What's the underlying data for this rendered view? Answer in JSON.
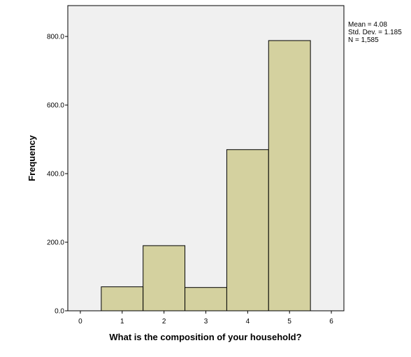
{
  "chart_data": {
    "type": "bar",
    "subtype": "histogram",
    "title": "",
    "xlabel": "What is the composition of your household?",
    "ylabel": "Frequency",
    "x_ticks": [
      "0",
      "1",
      "2",
      "3",
      "4",
      "5",
      "6"
    ],
    "y_ticks": [
      "0.0",
      "200.0",
      "400.0",
      "600.0",
      "800.0"
    ],
    "xlim": [
      -0.3,
      6.3
    ],
    "ylim": [
      0,
      890
    ],
    "bins": [
      {
        "center": 1,
        "value": 70
      },
      {
        "center": 2,
        "value": 190
      },
      {
        "center": 3,
        "value": 68
      },
      {
        "center": 4,
        "value": 470
      },
      {
        "center": 5,
        "value": 788
      }
    ],
    "bin_width": 1,
    "bar_color": "#d4d19f",
    "bar_edge_color": "#000000",
    "plot_background": "#f0f0f0",
    "stats": {
      "mean": "Mean = 4.08",
      "std": "Std. Dev. = 1.185",
      "n": "N = 1,585"
    },
    "legend": "none",
    "grid": false
  }
}
